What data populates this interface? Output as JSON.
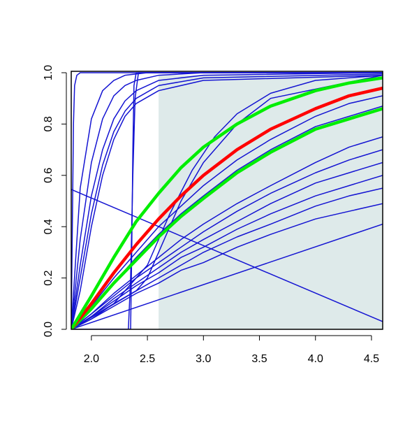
{
  "chart_data": {
    "type": "line",
    "xlim": [
      1.82,
      4.6
    ],
    "ylim": [
      0,
      1
    ],
    "xticks": [
      {
        "value": 2.0,
        "label": "2.0"
      },
      {
        "value": 2.5,
        "label": "2.5"
      },
      {
        "value": 3.0,
        "label": "3.0"
      },
      {
        "value": 3.5,
        "label": "3.5"
      },
      {
        "value": 4.0,
        "label": "4.0"
      },
      {
        "value": 4.5,
        "label": "4.5"
      }
    ],
    "yticks": [
      {
        "value": 0,
        "label": "0.0"
      },
      {
        "value": 0.2,
        "label": "0.2"
      },
      {
        "value": 0.4,
        "label": "0.4"
      },
      {
        "value": 0.6,
        "label": "0.6"
      },
      {
        "value": 0.8,
        "label": "0.8"
      },
      {
        "value": 1.0,
        "label": "1.0"
      }
    ],
    "shaded_region": {
      "x": [
        2.6,
        4.6
      ],
      "y": [
        0,
        0.99
      ],
      "color": "#deeaea"
    },
    "series": [
      {
        "color": "#1414d2",
        "line_width": 1.5,
        "x": [
          1.82,
          1.83,
          1.84,
          1.85,
          1.87,
          1.9,
          4.6
        ],
        "values": [
          0,
          0.4,
          0.8,
          0.95,
          0.99,
          1,
          1
        ]
      },
      {
        "color": "#1414d2",
        "line_width": 1.5,
        "x": [
          1.82,
          1.9,
          2.0,
          2.1,
          2.2,
          2.3,
          2.5,
          4.6
        ],
        "values": [
          0,
          0.55,
          0.82,
          0.93,
          0.97,
          0.99,
          1,
          1
        ]
      },
      {
        "color": "#1414d2",
        "line_width": 1.5,
        "x": [
          1.82,
          1.9,
          2.0,
          2.1,
          2.2,
          2.3,
          2.4,
          2.6,
          3.0,
          4.6
        ],
        "values": [
          0,
          0.35,
          0.65,
          0.82,
          0.91,
          0.95,
          0.97,
          0.99,
          1,
          1
        ]
      },
      {
        "color": "#1414d2",
        "line_width": 1.5,
        "x": [
          1.82,
          1.9,
          2.0,
          2.1,
          2.2,
          2.3,
          2.4,
          2.6,
          3.0,
          4.6
        ],
        "values": [
          0,
          0.25,
          0.52,
          0.7,
          0.82,
          0.89,
          0.93,
          0.97,
          0.99,
          1
        ]
      },
      {
        "color": "#1414d2",
        "line_width": 1.5,
        "x": [
          1.82,
          1.9,
          2.0,
          2.1,
          2.2,
          2.3,
          2.4,
          2.6,
          3.0,
          4.6
        ],
        "values": [
          0,
          0.2,
          0.45,
          0.64,
          0.77,
          0.85,
          0.9,
          0.95,
          0.98,
          0.995
        ]
      },
      {
        "color": "#1414d2",
        "line_width": 1.5,
        "x": [
          1.82,
          1.9,
          2.0,
          2.1,
          2.2,
          2.3,
          2.4,
          2.6,
          3.0,
          4.6
        ],
        "values": [
          0,
          0.15,
          0.4,
          0.6,
          0.74,
          0.83,
          0.88,
          0.93,
          0.97,
          0.99
        ]
      },
      {
        "color": "#1414d2",
        "line_width": 1.5,
        "x": [
          1.82,
          2.35,
          2.36,
          2.37,
          2.38,
          2.4,
          4.6
        ],
        "values": [
          0,
          0,
          0.3,
          0.7,
          0.95,
          1,
          1
        ]
      },
      {
        "color": "#1414d2",
        "line_width": 1.5,
        "x": [
          1.82,
          2.33,
          2.35,
          2.37,
          2.39,
          2.42,
          4.6
        ],
        "values": [
          0,
          0,
          0.2,
          0.6,
          0.9,
          1,
          1
        ]
      },
      {
        "color": "#1414d2",
        "line_width": 1.5,
        "x": [
          1.82,
          2.2,
          2.5,
          2.7,
          2.9,
          3.1,
          3.3,
          3.6,
          4.0,
          4.6
        ],
        "values": [
          0,
          0.1,
          0.25,
          0.45,
          0.62,
          0.75,
          0.84,
          0.92,
          0.97,
          0.99
        ]
      },
      {
        "color": "#1414d2",
        "line_width": 1.5,
        "x": [
          1.82,
          2.4,
          2.5,
          2.6,
          2.8,
          3.0,
          3.3,
          3.6,
          4.6
        ],
        "values": [
          0,
          0.15,
          0.2,
          0.3,
          0.5,
          0.65,
          0.8,
          0.9,
          0.99
        ]
      },
      {
        "color": "#1414d2",
        "line_width": 1.5,
        "x": [
          1.82,
          2.0,
          2.2,
          2.4,
          2.6,
          2.8,
          3.0,
          3.3,
          3.6,
          4.0,
          4.3,
          4.6
        ],
        "values": [
          0,
          0.09,
          0.2,
          0.3,
          0.4,
          0.48,
          0.56,
          0.66,
          0.74,
          0.83,
          0.88,
          0.91
        ]
      },
      {
        "color": "#1414d2",
        "line_width": 1.5,
        "x": [
          1.82,
          2.0,
          2.2,
          2.4,
          2.6,
          2.8,
          3.0,
          3.3,
          3.6,
          4.0,
          4.3,
          4.6
        ],
        "values": [
          0,
          0.08,
          0.18,
          0.28,
          0.37,
          0.45,
          0.52,
          0.62,
          0.7,
          0.79,
          0.83,
          0.87
        ]
      },
      {
        "color": "#1414d2",
        "line_width": 1.5,
        "x": [
          1.82,
          2.0,
          2.2,
          2.4,
          2.6,
          2.8,
          3.0,
          3.3,
          3.6,
          4.0,
          4.3,
          4.6
        ],
        "values": [
          0,
          0.06,
          0.14,
          0.21,
          0.28,
          0.35,
          0.41,
          0.49,
          0.56,
          0.65,
          0.71,
          0.75
        ]
      },
      {
        "color": "#1414d2",
        "line_width": 1.5,
        "x": [
          1.82,
          2.0,
          2.2,
          2.4,
          2.6,
          2.8,
          3.0,
          3.3,
          3.6,
          4.0,
          4.3,
          4.6
        ],
        "values": [
          0,
          0.06,
          0.13,
          0.2,
          0.26,
          0.32,
          0.38,
          0.46,
          0.53,
          0.61,
          0.66,
          0.7
        ]
      },
      {
        "color": "#1414d2",
        "line_width": 1.5,
        "x": [
          1.82,
          2.0,
          2.2,
          2.4,
          2.6,
          2.8,
          3.0,
          3.3,
          3.6,
          4.0,
          4.3,
          4.6
        ],
        "values": [
          0,
          0.05,
          0.12,
          0.18,
          0.24,
          0.3,
          0.35,
          0.42,
          0.49,
          0.57,
          0.61,
          0.65
        ]
      },
      {
        "color": "#1414d2",
        "line_width": 1.5,
        "x": [
          1.82,
          2.0,
          2.2,
          2.4,
          2.6,
          2.8,
          3.0,
          3.3,
          3.6,
          4.0,
          4.3,
          4.6
        ],
        "values": [
          0,
          0.05,
          0.11,
          0.17,
          0.22,
          0.28,
          0.32,
          0.39,
          0.45,
          0.52,
          0.56,
          0.6
        ]
      },
      {
        "color": "#1414d2",
        "line_width": 1.5,
        "x": [
          1.82,
          2.0,
          2.2,
          2.4,
          2.6,
          2.8,
          3.0,
          3.3,
          3.6,
          4.0,
          4.3,
          4.6
        ],
        "values": [
          0,
          0.04,
          0.1,
          0.15,
          0.2,
          0.25,
          0.3,
          0.36,
          0.41,
          0.48,
          0.52,
          0.55
        ]
      },
      {
        "color": "#1414d2",
        "line_width": 1.5,
        "x": [
          1.82,
          2.0,
          2.2,
          2.4,
          2.6,
          2.8,
          3.0,
          3.3,
          3.6,
          4.0,
          4.3,
          4.6
        ],
        "values": [
          0,
          0.04,
          0.09,
          0.14,
          0.18,
          0.23,
          0.26,
          0.32,
          0.37,
          0.43,
          0.46,
          0.49
        ]
      },
      {
        "color": "#1414d2",
        "line_width": 1.5,
        "x": [
          1.82,
          4.6
        ],
        "values": [
          0,
          0.41
        ]
      },
      {
        "color": "#1414d2",
        "line_width": 1.5,
        "x": [
          1.82,
          4.6
        ],
        "values": [
          0.545,
          0.03
        ]
      },
      {
        "color": "#00ee00",
        "line_width": 4.5,
        "x": [
          1.82,
          2.0,
          2.2,
          2.4,
          2.6,
          2.8,
          3.0,
          3.3,
          3.6,
          4.0,
          4.3,
          4.6
        ],
        "values": [
          0,
          0.08,
          0.18,
          0.27,
          0.36,
          0.44,
          0.51,
          0.61,
          0.69,
          0.78,
          0.82,
          0.86
        ]
      },
      {
        "color": "#ff0000",
        "line_width": 4.5,
        "x": [
          1.82,
          2.0,
          2.2,
          2.4,
          2.6,
          2.8,
          3.0,
          3.3,
          3.6,
          4.0,
          4.3,
          4.6
        ],
        "values": [
          0,
          0.1,
          0.22,
          0.33,
          0.43,
          0.52,
          0.6,
          0.7,
          0.78,
          0.86,
          0.91,
          0.94
        ]
      },
      {
        "color": "#00ee00",
        "line_width": 4.5,
        "x": [
          1.82,
          2.0,
          2.2,
          2.4,
          2.6,
          2.8,
          3.0,
          3.3,
          3.6,
          4.0,
          4.3,
          4.6
        ],
        "values": [
          0,
          0.13,
          0.28,
          0.42,
          0.53,
          0.63,
          0.71,
          0.8,
          0.87,
          0.93,
          0.96,
          0.98
        ]
      }
    ]
  }
}
